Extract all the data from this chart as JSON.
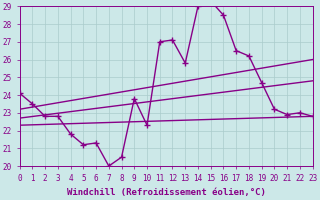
{
  "xlabel": "Windchill (Refroidissement éolien,°C)",
  "xlim": [
    0,
    23
  ],
  "ylim": [
    20,
    29
  ],
  "xticks": [
    0,
    1,
    2,
    3,
    4,
    5,
    6,
    7,
    8,
    9,
    10,
    11,
    12,
    13,
    14,
    15,
    16,
    17,
    18,
    19,
    20,
    21,
    22,
    23
  ],
  "yticks": [
    20,
    21,
    22,
    23,
    24,
    25,
    26,
    27,
    28,
    29
  ],
  "bg_color": "#cce8e8",
  "line_color": "#880088",
  "grid_color": "#aacccc",
  "curve_x": [
    0,
    1,
    2,
    3,
    4,
    5,
    6,
    7,
    8,
    9,
    10,
    11,
    12,
    13,
    14,
    15,
    16,
    17,
    18,
    19,
    20,
    21,
    22,
    23
  ],
  "curve_y": [
    24.1,
    23.5,
    22.8,
    22.8,
    21.8,
    21.2,
    21.3,
    20.0,
    20.5,
    23.8,
    22.3,
    27.0,
    27.1,
    25.8,
    29.0,
    29.3,
    28.5,
    26.5,
    26.2,
    24.7,
    23.2,
    22.9,
    23.0,
    22.8
  ],
  "line1_x": [
    0,
    23
  ],
  "line1_y": [
    23.2,
    26.0
  ],
  "line2_x": [
    0,
    23
  ],
  "line2_y": [
    22.7,
    24.8
  ],
  "line3_x": [
    0,
    23
  ],
  "line3_y": [
    22.3,
    22.8
  ],
  "marker": "P",
  "marker_size": 3.0,
  "line_width": 1.0,
  "tick_fontsize": 5.5,
  "xlabel_fontsize": 6.5
}
